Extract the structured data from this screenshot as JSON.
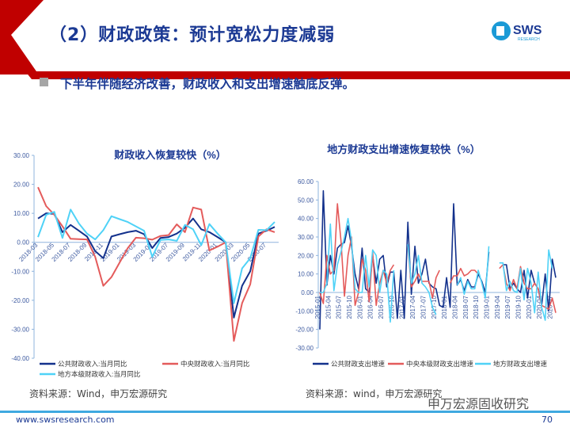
{
  "header": {
    "title": "（2）财政政策：预计宽松力度减弱",
    "logo_text": "SWS",
    "logo_sub": "RESEARCH"
  },
  "bullet": "下半年伴随经济改善，财政收入和支出增速触底反弹。",
  "colors": {
    "navy": "#1c3a94",
    "red": "#c00000",
    "dark_blue": "#13318c",
    "salmon": "#e45b5b",
    "cyan": "#4fd2f7"
  },
  "chart_data": [
    {
      "type": "line",
      "title": "财政收入恢复较快（%）",
      "ylim": [
        -40,
        30
      ],
      "yticks": [
        "30.00",
        "20.00",
        "10.00",
        "0.00",
        "-10.00",
        "-20.00",
        "-30.00",
        "-40.00"
      ],
      "ytick_values": [
        30,
        20,
        10,
        0,
        -10,
        -20,
        -30,
        -40
      ],
      "x": [
        "2018-03",
        "2018-04",
        "2018-05",
        "2018-06",
        "2018-07",
        "2018-08",
        "2018-09",
        "2018-10",
        "2018-11",
        "2018-12",
        "2019-01",
        "2019-02",
        "2019-03",
        "2019-04",
        "2019-05",
        "2019-06",
        "2019-07",
        "2019-08",
        "2019-09",
        "2019-10",
        "2019-11",
        "2019-12",
        "2020-01",
        "2020-02",
        "2020-03",
        "2020-04",
        "2020-05",
        "2020-06",
        "2020-07",
        "2020-08"
      ],
      "xticks": [
        "2018-03",
        "2018-05",
        "2018-07",
        "2018-09",
        "2018-11",
        "2019-01",
        "2019-03",
        "2019-05",
        "2019-07",
        "2019-09",
        "2019-11",
        "2020-01",
        "2020-03",
        "2020-05",
        "2020-07"
      ],
      "series": [
        {
          "name": "公共财政收入:当月同比",
          "color": "#13318c",
          "values": [
            8.2,
            10,
            9.8,
            3.5,
            6,
            4,
            2,
            -3,
            -5.5,
            2,
            2.8,
            3.5,
            4,
            2.8,
            -2,
            1.5,
            1.8,
            3,
            5,
            8.2,
            4.5,
            3.5,
            1.8,
            0,
            -26,
            -15,
            -10,
            3,
            4,
            5.3
          ]
        },
        {
          "name": "中央财政收入:当月同比",
          "color": "#e45b5b",
          "values": [
            19,
            12.5,
            9.5,
            5.5,
            1.2,
            1.1,
            1,
            -5,
            -15,
            -12,
            -7,
            -2,
            1.6,
            1.4,
            0.9,
            2.2,
            2.5,
            6.2,
            3.5,
            12,
            11.3,
            -2.8,
            -1.5,
            0,
            -34,
            -21,
            -14.5,
            2,
            4.5,
            3.5
          ]
        },
        {
          "name": "地方本级财政收入:当月同比",
          "color": "#4fd2f7",
          "values": [
            1.8,
            9.5,
            10.5,
            1.5,
            11.3,
            6.5,
            3,
            1,
            4.2,
            9,
            8,
            7,
            5.5,
            4,
            -5,
            0.8,
            1,
            0.5,
            6,
            4.5,
            -1,
            6.3,
            3,
            0,
            -21,
            -9,
            -5.5,
            4.3,
            4.2,
            7
          ]
        }
      ]
    },
    {
      "type": "line",
      "title": "地方财政支出增速恢复较快（%）",
      "ylim": [
        -30,
        60
      ],
      "yticks": [
        "60.00",
        "50.00",
        "40.00",
        "30.00",
        "20.00",
        "10.00",
        "0.00",
        "-10.00",
        "-20.00",
        "-30.00"
      ],
      "ytick_values": [
        60,
        50,
        40,
        30,
        20,
        10,
        0,
        -10,
        -20,
        -30
      ],
      "x_start": "2015-01",
      "x_end": "2020-08",
      "n_points": 68,
      "xticks": [
        "2015-01",
        "2015-04",
        "2015-07",
        "2015-10",
        "2016-01",
        "2016-04",
        "2016-07",
        "2016-10",
        "2017-01",
        "2017-04",
        "2017-07",
        "2017-10",
        "2018-01",
        "2018-04",
        "2018-07",
        "2018-10",
        "2019-01",
        "2019-04",
        "2019-07",
        "2019-10",
        "2020-01",
        "2020-04",
        "2020-07"
      ],
      "series": [
        {
          "name": "公共财政支出增速",
          "color": "#13318c",
          "values": [
            -20,
            55,
            4,
            20,
            10,
            24,
            26,
            27,
            36,
            25,
            10,
            2,
            24,
            2,
            0,
            20,
            5,
            18,
            20,
            3,
            11,
            11,
            -14,
            12,
            -14,
            38,
            -1,
            25,
            5,
            10,
            18,
            5,
            3,
            2,
            -7,
            -8,
            8,
            -8,
            48,
            4,
            7,
            1,
            7,
            3,
            3,
            10,
            6,
            0,
            22,
            null,
            null,
            null,
            15,
            15,
            2,
            5,
            2,
            0,
            12,
            -3,
            12,
            5,
            2,
            -7,
            10,
            -10,
            18,
            8
          ]
        },
        {
          "name": "中央本级财政支出增速",
          "color": "#e45b5b",
          "values": [
            0,
            -6,
            20,
            10,
            12,
            48,
            28,
            -2,
            20,
            30,
            -7,
            0,
            18,
            12,
            -5,
            22,
            -7,
            5,
            12,
            5,
            12,
            15,
            null,
            null,
            null,
            25,
            3,
            6,
            10,
            6,
            6,
            6,
            -3,
            8,
            12,
            null,
            null,
            5,
            9,
            9,
            13,
            9,
            10,
            12,
            12,
            10,
            null,
            null,
            null,
            null,
            null,
            13,
            15,
            5,
            1,
            7,
            2,
            14,
            5,
            2,
            2,
            5,
            2,
            -7,
            -8,
            -9,
            -3,
            -11
          ]
        },
        {
          "name": "地方财政支出增速",
          "color": "#4fd2f7",
          "values": [
            0,
            0,
            5,
            37,
            1,
            15,
            22,
            30,
            40,
            28,
            2,
            0,
            0,
            20,
            3,
            23,
            20,
            0,
            12,
            10,
            -16,
            12,
            null,
            null,
            null,
            26,
            5,
            10,
            20,
            5,
            3,
            0,
            -8,
            -12,
            null,
            null,
            null,
            null,
            null,
            4,
            8,
            -1,
            6,
            2,
            2,
            12,
            5,
            -3,
            25,
            null,
            null,
            16,
            16,
            1,
            6,
            1,
            0,
            13,
            -4,
            13,
            5,
            -11,
            11,
            -8,
            -15,
            23,
            13,
            null
          ]
        }
      ]
    }
  ],
  "footer": {
    "source_left": "资料来源：Wind，申万宏源研究",
    "source_right": "资料来源：wind，申万宏源研究",
    "url": "www.swsresearch.com",
    "page": "70",
    "watermark": "申万宏源固收研究"
  }
}
